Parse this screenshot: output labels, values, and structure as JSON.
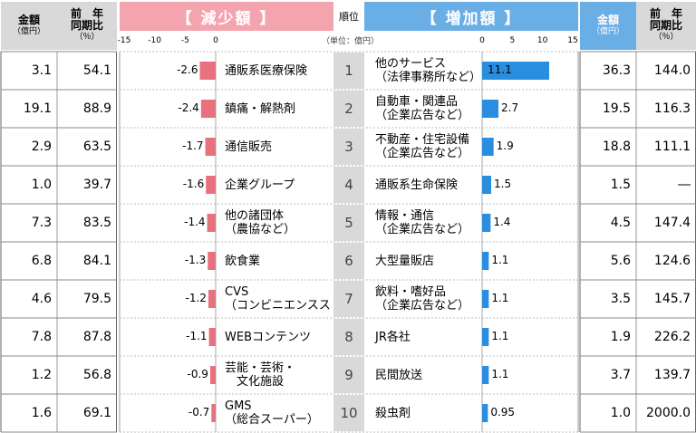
{
  "headers": {
    "amount": "金額",
    "amount_unit": "（億円）",
    "yoy": "前　年\n同期比",
    "yoy_unit": "（％）",
    "decrease_title": "【 減少額 】",
    "increase_title": "【 増加額 】",
    "rank": "順位",
    "unit_note": "（単位：億円）"
  },
  "colors": {
    "decrease_bar": "#e8717e",
    "increase_bar": "#2a8ee0",
    "pink_header": "#f4a4ae",
    "blue_header": "#6aaee6"
  },
  "chart_data": [
    {
      "type": "bar",
      "title": "【 減少額 】",
      "xlim": [
        -15,
        0
      ],
      "ticks": [
        "-15",
        "-10",
        "-5",
        "0"
      ],
      "categories": [
        [
          "通販系医療保険"
        ],
        [
          "鎮痛・解熱剤"
        ],
        [
          "通信販売"
        ],
        [
          "企業グループ"
        ],
        [
          "他の諸団体",
          "（農協など）"
        ],
        [
          "飲食業"
        ],
        [
          "CVS",
          "（コンビニエンスストア）"
        ],
        [
          "WEBコンテンツ"
        ],
        [
          "芸能・芸術・",
          "　文化施設"
        ],
        [
          "GMS",
          "（総合スーパー）"
        ]
      ],
      "values": [
        -2.6,
        -2.4,
        -1.7,
        -1.6,
        -1.4,
        -1.3,
        -1.2,
        -1.1,
        -0.9,
        -0.7
      ],
      "value_labels": [
        "-2.6",
        "-2.4",
        "-1.7",
        "-1.6",
        "-1.4",
        "-1.3",
        "-1.2",
        "-1.1",
        "-0.9",
        "-0.7"
      ],
      "amount": [
        "3.1",
        "19.1",
        "2.9",
        "1.0",
        "7.3",
        "6.8",
        "4.6",
        "7.8",
        "1.2",
        "1.6"
      ],
      "yoy": [
        "54.1",
        "88.9",
        "63.5",
        "39.7",
        "83.5",
        "84.1",
        "79.5",
        "87.8",
        "56.8",
        "69.1"
      ]
    },
    {
      "type": "bar",
      "title": "【 増加額 】",
      "xlim": [
        0,
        15
      ],
      "ticks": [
        "0",
        "5",
        "10",
        "15"
      ],
      "categories": [
        [
          "他のサービス",
          "（法律事務所など）"
        ],
        [
          "自動車・関連品",
          "（企業広告など）"
        ],
        [
          "不動産・住宅設備",
          "（企業広告など）"
        ],
        [
          "通販系生命保険"
        ],
        [
          "情報・通信",
          "（企業広告など）"
        ],
        [
          "大型量販店"
        ],
        [
          "飲料・嗜好品",
          "（企業広告など）"
        ],
        [
          "JR各社"
        ],
        [
          "民間放送"
        ],
        [
          "殺虫剤"
        ]
      ],
      "values": [
        11.1,
        2.7,
        1.9,
        1.5,
        1.4,
        1.1,
        1.1,
        1.1,
        1.1,
        0.95
      ],
      "value_labels": [
        "11.1",
        "2.7",
        "1.9",
        "1.5",
        "1.4",
        "1.1",
        "1.1",
        "1.1",
        "1.1",
        "0.95"
      ],
      "amount": [
        "36.3",
        "19.5",
        "18.8",
        "1.5",
        "4.5",
        "5.6",
        "3.5",
        "1.9",
        "3.7",
        "1.0"
      ],
      "yoy": [
        "144.0",
        "116.3",
        "111.1",
        "―",
        "147.4",
        "124.6",
        "145.7",
        "226.2",
        "139.7",
        "2000.0"
      ]
    }
  ],
  "ranks": [
    "1",
    "2",
    "3",
    "4",
    "5",
    "6",
    "7",
    "8",
    "9",
    "10"
  ]
}
